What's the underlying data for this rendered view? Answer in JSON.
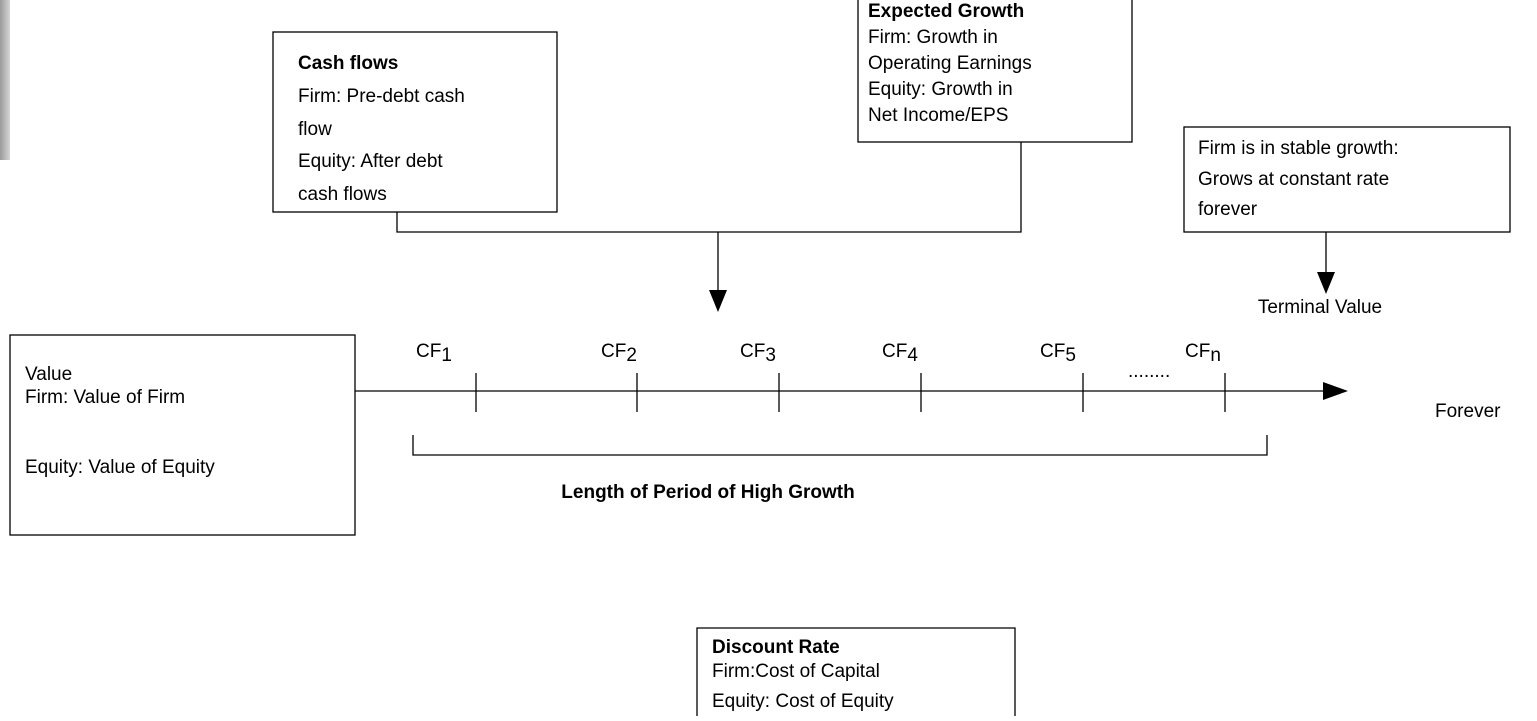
{
  "cash_flows_box": {
    "title": "Cash flows",
    "lines": [
      "Firm: Pre-debt cash",
      "flow",
      "Equity: After debt",
      "cash flows"
    ]
  },
  "growth_box": {
    "title": "Expected Growth",
    "lines": [
      "Firm: Growth in",
      "Operating Earnings",
      "Equity: Growth in",
      "Net Income/EPS"
    ]
  },
  "stable_box": {
    "lines": [
      "Firm is in stable growth:",
      "Grows at constant rate",
      "forever"
    ]
  },
  "terminal_value": "Terminal Value",
  "value_box": {
    "lines": [
      "Value",
      "Firm: Value of Firm",
      "Equity: Value of Equity"
    ]
  },
  "timeline": {
    "labels": [
      {
        "base": "CF",
        "sub": "1"
      },
      {
        "base": "CF",
        "sub": "2"
      },
      {
        "base": "CF",
        "sub": "3"
      },
      {
        "base": "CF",
        "sub": "4"
      },
      {
        "base": "CF",
        "sub": "5"
      },
      {
        "base": "CF",
        "sub": "n"
      }
    ],
    "ellipsis": "........",
    "end_label": "Forever"
  },
  "period_label": "Length of Period of High Growth",
  "discount_box": {
    "title": "Discount Rate",
    "lines": [
      "Firm:Cost of Capital",
      "Equity: Cost of Equity"
    ]
  }
}
